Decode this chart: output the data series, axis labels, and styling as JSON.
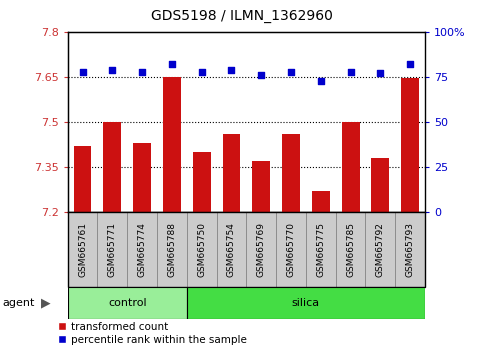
{
  "title": "GDS5198 / ILMN_1362960",
  "samples": [
    "GSM665761",
    "GSM665771",
    "GSM665774",
    "GSM665788",
    "GSM665750",
    "GSM665754",
    "GSM665769",
    "GSM665770",
    "GSM665775",
    "GSM665785",
    "GSM665792",
    "GSM665793"
  ],
  "bar_values": [
    7.42,
    7.5,
    7.43,
    7.65,
    7.4,
    7.46,
    7.37,
    7.46,
    7.27,
    7.5,
    7.38,
    7.645
  ],
  "dot_values": [
    78,
    79,
    78,
    82,
    78,
    79,
    76,
    78,
    73,
    78,
    77,
    82
  ],
  "bar_color": "#cc1111",
  "dot_color": "#0000cc",
  "ylim_left": [
    7.2,
    7.8
  ],
  "ylim_right": [
    0,
    100
  ],
  "yticks_left": [
    7.2,
    7.35,
    7.5,
    7.65,
    7.8
  ],
  "yticks_right": [
    0,
    25,
    50,
    75,
    100
  ],
  "ytick_labels_left": [
    "7.2",
    "7.35",
    "7.5",
    "7.65",
    "7.8"
  ],
  "ytick_labels_right": [
    "0",
    "25",
    "50",
    "75",
    "100%"
  ],
  "grid_values": [
    7.35,
    7.5,
    7.65
  ],
  "control_samples": 4,
  "silica_samples": 8,
  "control_label": "control",
  "silica_label": "silica",
  "agent_label": "agent",
  "legend_bar_label": "transformed count",
  "legend_dot_label": "percentile rank within the sample",
  "control_color": "#99ee99",
  "silica_color": "#44dd44",
  "sample_box_color": "#cccccc",
  "bar_width": 0.6
}
